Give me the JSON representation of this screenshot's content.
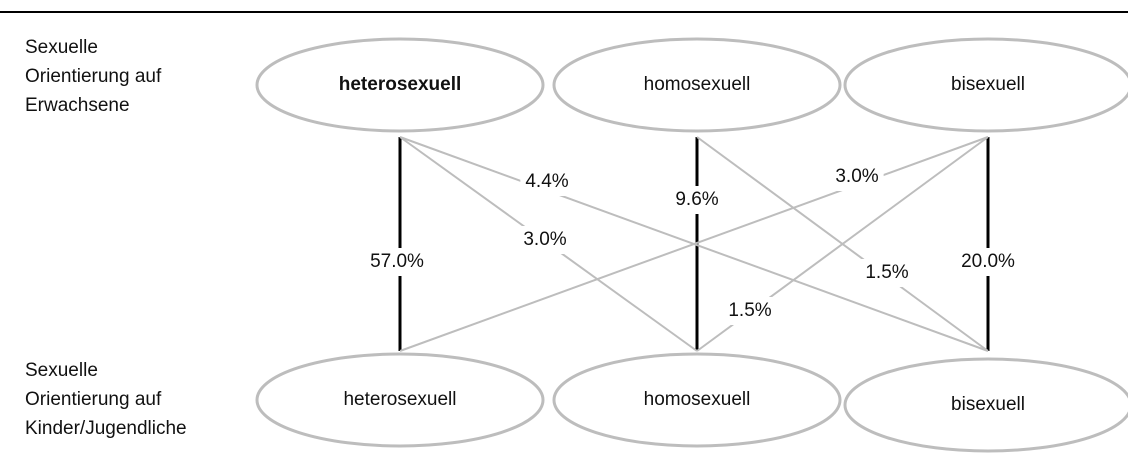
{
  "row_labels": {
    "top": [
      "Sexuelle",
      "Orientierung auf",
      "Erwachsene"
    ],
    "bottom": [
      "Sexuelle",
      "Orientierung auf",
      "Kinder/Jugendliche"
    ]
  },
  "top_nodes": [
    {
      "label": "heterosexuell"
    },
    {
      "label": "homosexuell"
    },
    {
      "label": "bisexuell"
    }
  ],
  "bottom_nodes": [
    {
      "label": "heterosexuell"
    },
    {
      "label": "homosexuell"
    },
    {
      "label": "bisexuell"
    }
  ],
  "edges": [
    {
      "label": "57.0%"
    },
    {
      "label": "9.6%"
    },
    {
      "label": "20.0%"
    },
    {
      "label": "3.0%"
    },
    {
      "label": "4.4%"
    },
    {
      "label": "1.5%"
    },
    {
      "label": "3.0%"
    },
    {
      "label": "1.5%"
    }
  ]
}
